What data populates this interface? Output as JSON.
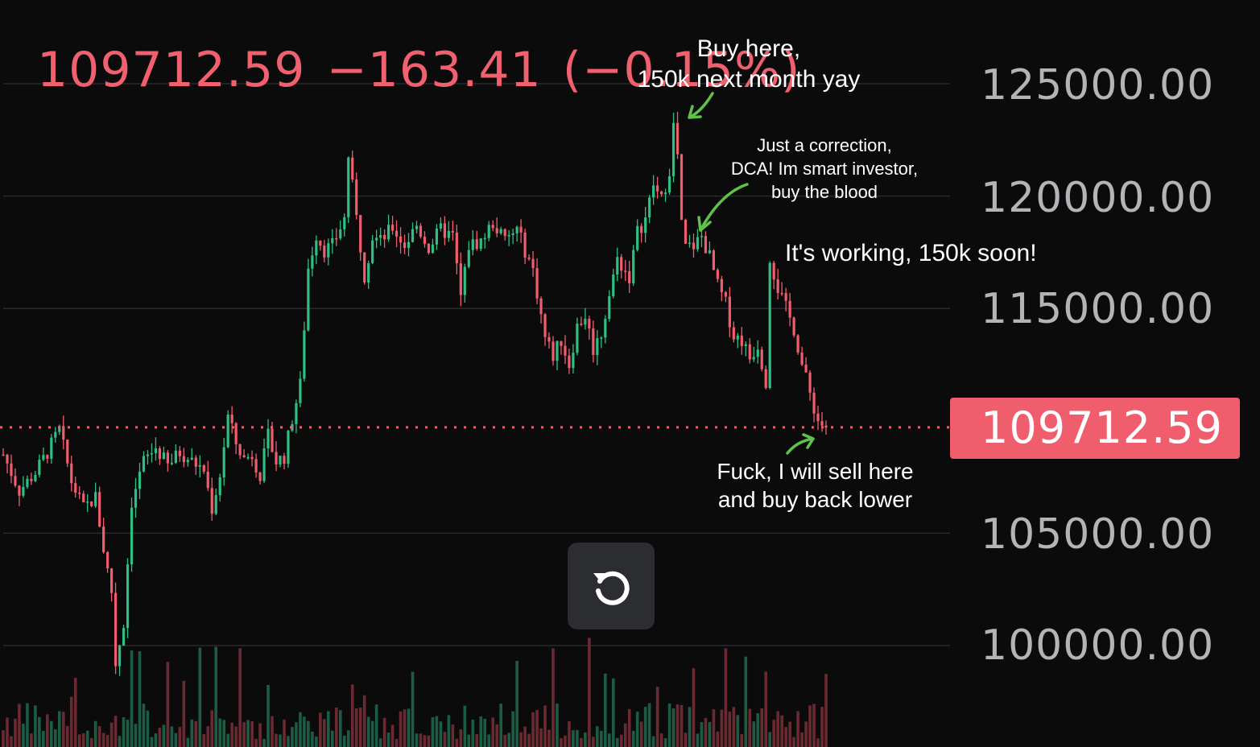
{
  "header": {
    "price": "109712.59",
    "change": "−163.41",
    "change_pct": "(−0.15%)"
  },
  "colors": {
    "background": "#0b0b0c",
    "up": "#2fbf83",
    "down": "#f05d6d",
    "annotation_arrow": "#5fc24a",
    "grid": "#2a2a2e"
  },
  "current_price_tag": "109712.59",
  "annotations": {
    "a1_line1": "Buy here,",
    "a1_line2": "150k next month yay",
    "a2_line1": "Just a correction,",
    "a2_line2": "DCA! Im smart investor,",
    "a2_line3": "buy the blood",
    "a3": "It's working, 150k soon!",
    "a4_line1": "Fuck, I will sell here",
    "a4_line2": "and buy back lower"
  },
  "reset_button_icon": "refresh-icon",
  "chart_data": {
    "type": "candlestick",
    "y_ticks": [
      "125000.00",
      "120000.00",
      "115000.00",
      "105000.00",
      "100000.00"
    ],
    "ylim": [
      98000,
      127000
    ],
    "current_price": 109712.59,
    "close_path": [
      [
        0,
        108500
      ],
      [
        4,
        106900
      ],
      [
        8,
        107700
      ],
      [
        11,
        108600
      ],
      [
        14,
        109600
      ],
      [
        17,
        107300
      ],
      [
        20,
        106100
      ],
      [
        23,
        106600
      ],
      [
        25,
        104300
      ],
      [
        27,
        102400
      ],
      [
        28,
        99200
      ],
      [
        30,
        101000
      ],
      [
        32,
        106400
      ],
      [
        35,
        108200
      ],
      [
        38,
        108800
      ],
      [
        41,
        108000
      ],
      [
        44,
        108600
      ],
      [
        47,
        108200
      ],
      [
        50,
        107800
      ],
      [
        52,
        106100
      ],
      [
        54,
        107600
      ],
      [
        56,
        110200
      ],
      [
        58,
        109000
      ],
      [
        60,
        108300
      ],
      [
        62,
        108500
      ],
      [
        64,
        107600
      ],
      [
        66,
        109300
      ],
      [
        68,
        108200
      ],
      [
        70,
        108400
      ],
      [
        72,
        110100
      ],
      [
        74,
        111600
      ],
      [
        76,
        116800
      ],
      [
        78,
        118300
      ],
      [
        80,
        117600
      ],
      [
        82,
        117800
      ],
      [
        85,
        119000
      ],
      [
        86,
        121800
      ],
      [
        88,
        119000
      ],
      [
        90,
        116500
      ],
      [
        92,
        118200
      ],
      [
        94,
        118000
      ],
      [
        97,
        118600
      ],
      [
        100,
        117800
      ],
      [
        103,
        118700
      ],
      [
        106,
        117700
      ],
      [
        109,
        118500
      ],
      [
        112,
        118200
      ],
      [
        114,
        115500
      ],
      [
        116,
        117800
      ],
      [
        119,
        118000
      ],
      [
        122,
        118800
      ],
      [
        125,
        118000
      ],
      [
        128,
        118500
      ],
      [
        130,
        117600
      ],
      [
        132,
        116700
      ],
      [
        135,
        113700
      ],
      [
        137,
        112900
      ],
      [
        139,
        113600
      ],
      [
        141,
        112500
      ],
      [
        143,
        114200
      ],
      [
        145,
        114700
      ],
      [
        147,
        113200
      ],
      [
        149,
        113900
      ],
      [
        151,
        115600
      ],
      [
        153,
        117200
      ],
      [
        156,
        116400
      ],
      [
        158,
        118400
      ],
      [
        160,
        119000
      ],
      [
        162,
        120500
      ],
      [
        164,
        119800
      ],
      [
        166,
        121200
      ],
      [
        167,
        123100
      ],
      [
        168,
        121800
      ],
      [
        169,
        118700
      ],
      [
        170,
        117700
      ],
      [
        172,
        117800
      ],
      [
        174,
        118200
      ],
      [
        176,
        117300
      ],
      [
        178,
        116000
      ],
      [
        180,
        115200
      ],
      [
        182,
        113800
      ],
      [
        184,
        113600
      ],
      [
        186,
        112800
      ],
      [
        188,
        113400
      ],
      [
        190,
        111800
      ],
      [
        191,
        117300
      ],
      [
        193,
        115900
      ],
      [
        195,
        115000
      ],
      [
        197,
        114100
      ],
      [
        199,
        112500
      ],
      [
        201,
        111200
      ],
      [
        203,
        110000
      ],
      [
        205,
        109700
      ]
    ]
  }
}
